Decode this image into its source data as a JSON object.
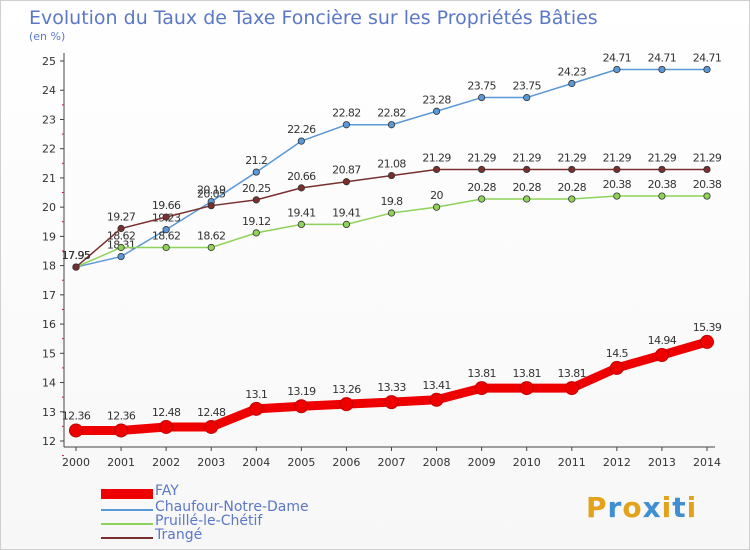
{
  "title": "Evolution du Taux de Taxe Foncière sur les Propriétés Bâties",
  "unit": "(en %)",
  "brand": {
    "letters": [
      "P",
      "r",
      "o",
      "x",
      "i",
      "t",
      "i"
    ],
    "colors": [
      "#e3a21a",
      "#3f8fd2",
      "#e3a21a",
      "#3f8fd2",
      "#e3a21a",
      "#3f8fd2",
      "#e3a21a"
    ]
  },
  "chart_data": {
    "type": "line",
    "title": "Evolution du Taux de Taxe Foncière sur les Propriétés Bâties",
    "ylabel": "(en %)",
    "xlabel": "",
    "x": [
      "2000",
      "2001",
      "2002",
      "2003",
      "2004",
      "2005",
      "2006",
      "2007",
      "2008",
      "2009",
      "2010",
      "2011",
      "2012",
      "2013",
      "2014"
    ],
    "ylim": [
      12,
      25
    ],
    "yticks": [
      "12",
      "13",
      "14",
      "15",
      "16",
      "17",
      "18",
      "19",
      "20",
      "21",
      "22",
      "23",
      "24",
      "25"
    ],
    "grid": false,
    "legend_position": "bottom-left",
    "series": [
      {
        "name": "FAY",
        "color": "#ee0000",
        "values": [
          12.36,
          12.36,
          12.48,
          12.48,
          13.1,
          13.19,
          13.26,
          13.33,
          13.41,
          13.81,
          13.81,
          13.81,
          14.5,
          14.94,
          15.39
        ],
        "labels": [
          "12.36",
          "12.36",
          "12.48",
          "12.48",
          "13.1",
          "13.19",
          "13.26",
          "13.33",
          "13.41",
          "13.81",
          "13.81",
          "13.81",
          "14.5",
          "14.94",
          "15.39"
        ]
      },
      {
        "name": "Chaufour-Notre-Dame",
        "color": "#5a98d6",
        "values": [
          17.95,
          18.31,
          19.23,
          20.19,
          21.2,
          22.26,
          22.82,
          22.82,
          23.28,
          23.75,
          23.75,
          24.23,
          24.71,
          24.71,
          24.71
        ],
        "labels": [
          "17.95",
          "18.31",
          "19.23",
          "20.19",
          "21.2",
          "22.26",
          "22.82",
          "22.82",
          "23.28",
          "23.75",
          "23.75",
          "24.23",
          "24.71",
          "24.71",
          "24.71"
        ]
      },
      {
        "name": "Pruillé-le-Chétif",
        "color": "#8fd25a",
        "values": [
          17.95,
          18.62,
          18.62,
          18.62,
          19.12,
          19.41,
          19.41,
          19.8,
          20,
          20.28,
          20.28,
          20.28,
          20.38,
          20.38,
          20.38
        ],
        "labels": [
          "17.95",
          "18.62",
          "18.62",
          "18.62",
          "19.12",
          "19.41",
          "19.41",
          "19.8",
          "20",
          "20.28",
          "20.28",
          "20.28",
          "20.38",
          "20.38",
          "20.38"
        ]
      },
      {
        "name": "Trangé",
        "color": "#7a2f2f",
        "values": [
          17.95,
          19.27,
          19.66,
          20.05,
          20.25,
          20.66,
          20.87,
          21.08,
          21.29,
          21.29,
          21.29,
          21.29,
          21.29,
          21.29,
          21.29
        ],
        "labels": [
          "17.95",
          "19.27",
          "19.66",
          "20.05",
          "20.25",
          "20.66",
          "20.87",
          "21.08",
          "21.29",
          "21.29",
          "21.29",
          "21.29",
          "21.29",
          "21.29",
          "21.29"
        ]
      }
    ]
  }
}
